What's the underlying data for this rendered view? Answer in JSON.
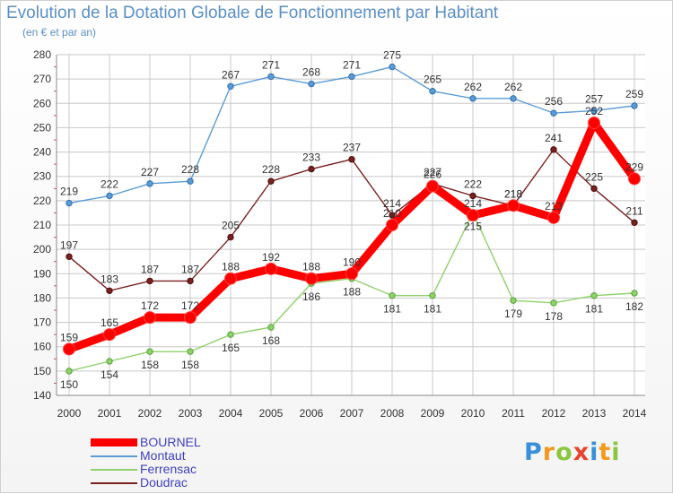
{
  "title": "Evolution de la Dotation Globale de Fonctionnement par Habitant",
  "subtitle": "(en € et par an)",
  "logo": "Proxiti",
  "chart_data": {
    "type": "line",
    "categories": [
      "2000",
      "2001",
      "2002",
      "2003",
      "2004",
      "2005",
      "2006",
      "2007",
      "2008",
      "2009",
      "2010",
      "2011",
      "2012",
      "2013",
      "2014"
    ],
    "ylim": [
      140,
      280
    ],
    "yticks": [
      140,
      150,
      160,
      170,
      180,
      190,
      200,
      210,
      220,
      230,
      240,
      250,
      260,
      270,
      280
    ],
    "grid": true,
    "legend_placement": "bottom-left",
    "series": [
      {
        "name": "Montaut",
        "color": "#5b9bd5",
        "values": [
          219,
          222,
          227,
          228,
          267,
          271,
          268,
          271,
          275,
          265,
          262,
          262,
          256,
          257,
          259
        ]
      },
      {
        "name": "Ferrensac",
        "color": "#8fd16a",
        "values": [
          150,
          154,
          158,
          158,
          165,
          168,
          186,
          188,
          181,
          181,
          215,
          179,
          178,
          181,
          182
        ]
      },
      {
        "name": "Doudrac",
        "color": "#7b2020",
        "values": [
          197,
          183,
          187,
          187,
          205,
          228,
          233,
          237,
          214,
          227,
          222,
          218,
          241,
          225,
          211
        ]
      },
      {
        "name": "BOURNEL",
        "color": "#ff0000",
        "values": [
          159,
          165,
          172,
          172,
          188,
          192,
          188,
          190,
          210,
          226,
          214,
          218,
          213,
          252,
          229
        ]
      }
    ],
    "legend": [
      "BOURNEL",
      "Montaut",
      "Ferrensac",
      "Doudrac"
    ]
  }
}
